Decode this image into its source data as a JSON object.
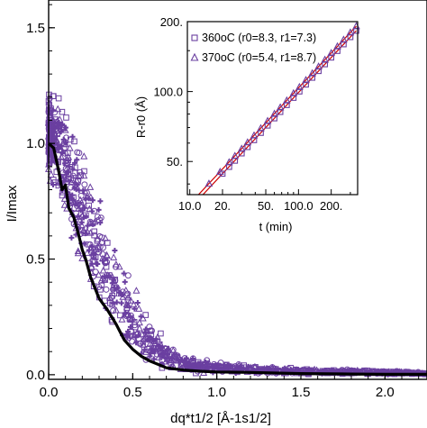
{
  "chart_data": [
    {
      "type": "scatter",
      "title": "",
      "xlabel": "dq*t1/2 [Å-1s1/2]",
      "ylabel": "I/Imax",
      "xlim": [
        0.0,
        2.25
      ],
      "ylim": [
        -0.02,
        1.62
      ],
      "xticks": [
        0.0,
        0.5,
        1.0,
        1.5,
        2.0
      ],
      "xticklabels": [
        "0.0",
        "0.5",
        "1.0",
        "1.5",
        "2.0"
      ],
      "yticks": [
        0.0,
        0.5,
        1.0,
        1.5
      ],
      "yticklabels": [
        "0.0",
        "0.5",
        "1.0",
        "1.5"
      ],
      "grid": false,
      "scatter_color": "#6a3fa0",
      "line_color": "#000000",
      "series": [
        {
          "marker": "scattered open symbols (circles, triangles, squares, crosses)",
          "envelope": [
            {
              "x": 0.0,
              "lo": 0.82,
              "hi": 1.25
            },
            {
              "x": 0.05,
              "lo": 0.7,
              "hi": 1.3
            },
            {
              "x": 0.1,
              "lo": 0.6,
              "hi": 1.2
            },
            {
              "x": 0.15,
              "lo": 0.5,
              "hi": 1.1
            },
            {
              "x": 0.2,
              "lo": 0.4,
              "hi": 1.0
            },
            {
              "x": 0.3,
              "lo": 0.22,
              "hi": 0.82
            },
            {
              "x": 0.4,
              "lo": 0.1,
              "hi": 0.6
            },
            {
              "x": 0.5,
              "lo": 0.04,
              "hi": 0.42
            },
            {
              "x": 0.6,
              "lo": 0.02,
              "hi": 0.27
            },
            {
              "x": 0.7,
              "lo": 0.0,
              "hi": 0.15
            },
            {
              "x": 0.8,
              "lo": 0.0,
              "hi": 0.1
            },
            {
              "x": 1.0,
              "lo": 0.0,
              "hi": 0.06
            },
            {
              "x": 1.5,
              "lo": 0.0,
              "hi": 0.03
            },
            {
              "x": 2.0,
              "lo": 0.0,
              "hi": 0.02
            },
            {
              "x": 2.25,
              "lo": 0.0,
              "hi": 0.01
            }
          ]
        },
        {
          "marker": "thick line (average)",
          "x": [
            0.0,
            0.03,
            0.06,
            0.08,
            0.1,
            0.12,
            0.15,
            0.18,
            0.2,
            0.22,
            0.25,
            0.3,
            0.35,
            0.4,
            0.45,
            0.5,
            0.55,
            0.6,
            0.7,
            0.8,
            0.9,
            1.0,
            1.2,
            1.5,
            1.8,
            2.0,
            2.25
          ],
          "y": [
            1.0,
            0.98,
            0.88,
            0.8,
            0.82,
            0.72,
            0.68,
            0.6,
            0.54,
            0.5,
            0.42,
            0.33,
            0.28,
            0.22,
            0.15,
            0.11,
            0.08,
            0.06,
            0.03,
            0.02,
            0.015,
            0.012,
            0.01,
            0.005,
            0.003,
            0.002,
            0.002
          ]
        }
      ]
    },
    {
      "type": "scatter",
      "title": "",
      "xlabel": "t (min)",
      "ylabel": "R-r0 (Å)",
      "xscale": "log",
      "yscale": "log",
      "xlim": [
        9.5,
        350
      ],
      "ylim": [
        36,
        200
      ],
      "xticks": [
        10,
        20,
        50,
        100,
        200
      ],
      "xticklabels": [
        "10.0",
        "20.",
        "50.",
        "100.0",
        "200."
      ],
      "yticks": [
        50,
        100,
        200
      ],
      "yticklabels": [
        "50.",
        "100.0",
        "200."
      ],
      "fit_color": "#cc0000",
      "marker_color": "#6a3fa0",
      "legend_position": "top-left",
      "legend": [
        {
          "text": "360oC (r0=8.3, r1=7.3)",
          "symbol": "square"
        },
        {
          "text": "370oC (r0=5.4, r1=8.7)",
          "symbol": "triangle"
        }
      ],
      "series": [
        {
          "name": "360oC (r0=8.3, r1=7.3)",
          "marker": "square",
          "x": [
            20,
            23,
            26,
            30,
            34,
            39,
            45,
            52,
            60,
            68,
            78,
            90,
            102,
            117,
            134,
            153,
            175,
            200,
            228,
            260,
            300,
            340
          ],
          "y": [
            44.3,
            47.4,
            50.4,
            54.2,
            57.7,
            61.8,
            66.4,
            71.4,
            76.7,
            81.7,
            87.5,
            94.0,
            100.1,
            107.2,
            114.7,
            122.6,
            131.1,
            140.1,
            149.6,
            159.8,
            171.6,
            182.7
          ],
          "fit": {
            "x": [
              13,
              340
            ],
            "y": [
              35.7,
              182.7
            ]
          }
        },
        {
          "name": "370oC (r0=5.4, r1=8.7)",
          "marker": "triangle",
          "x": [
            15,
            19,
            23,
            26,
            30,
            34,
            39,
            45,
            52,
            60,
            68,
            78,
            90,
            102,
            117,
            134,
            153,
            175,
            200,
            228,
            260,
            300,
            340
          ],
          "y": [
            40.1,
            45.1,
            49.6,
            52.8,
            56.7,
            60.4,
            64.7,
            69.5,
            74.7,
            80.2,
            85.4,
            91.5,
            98.3,
            104.6,
            112.0,
            119.8,
            128.1,
            137.0,
            146.4,
            156.4,
            167.1,
            179.5,
            191.1
          ],
          "fit": {
            "x": [
              11.5,
              340
            ],
            "y": [
              35.2,
              191.1
            ]
          }
        }
      ]
    }
  ]
}
